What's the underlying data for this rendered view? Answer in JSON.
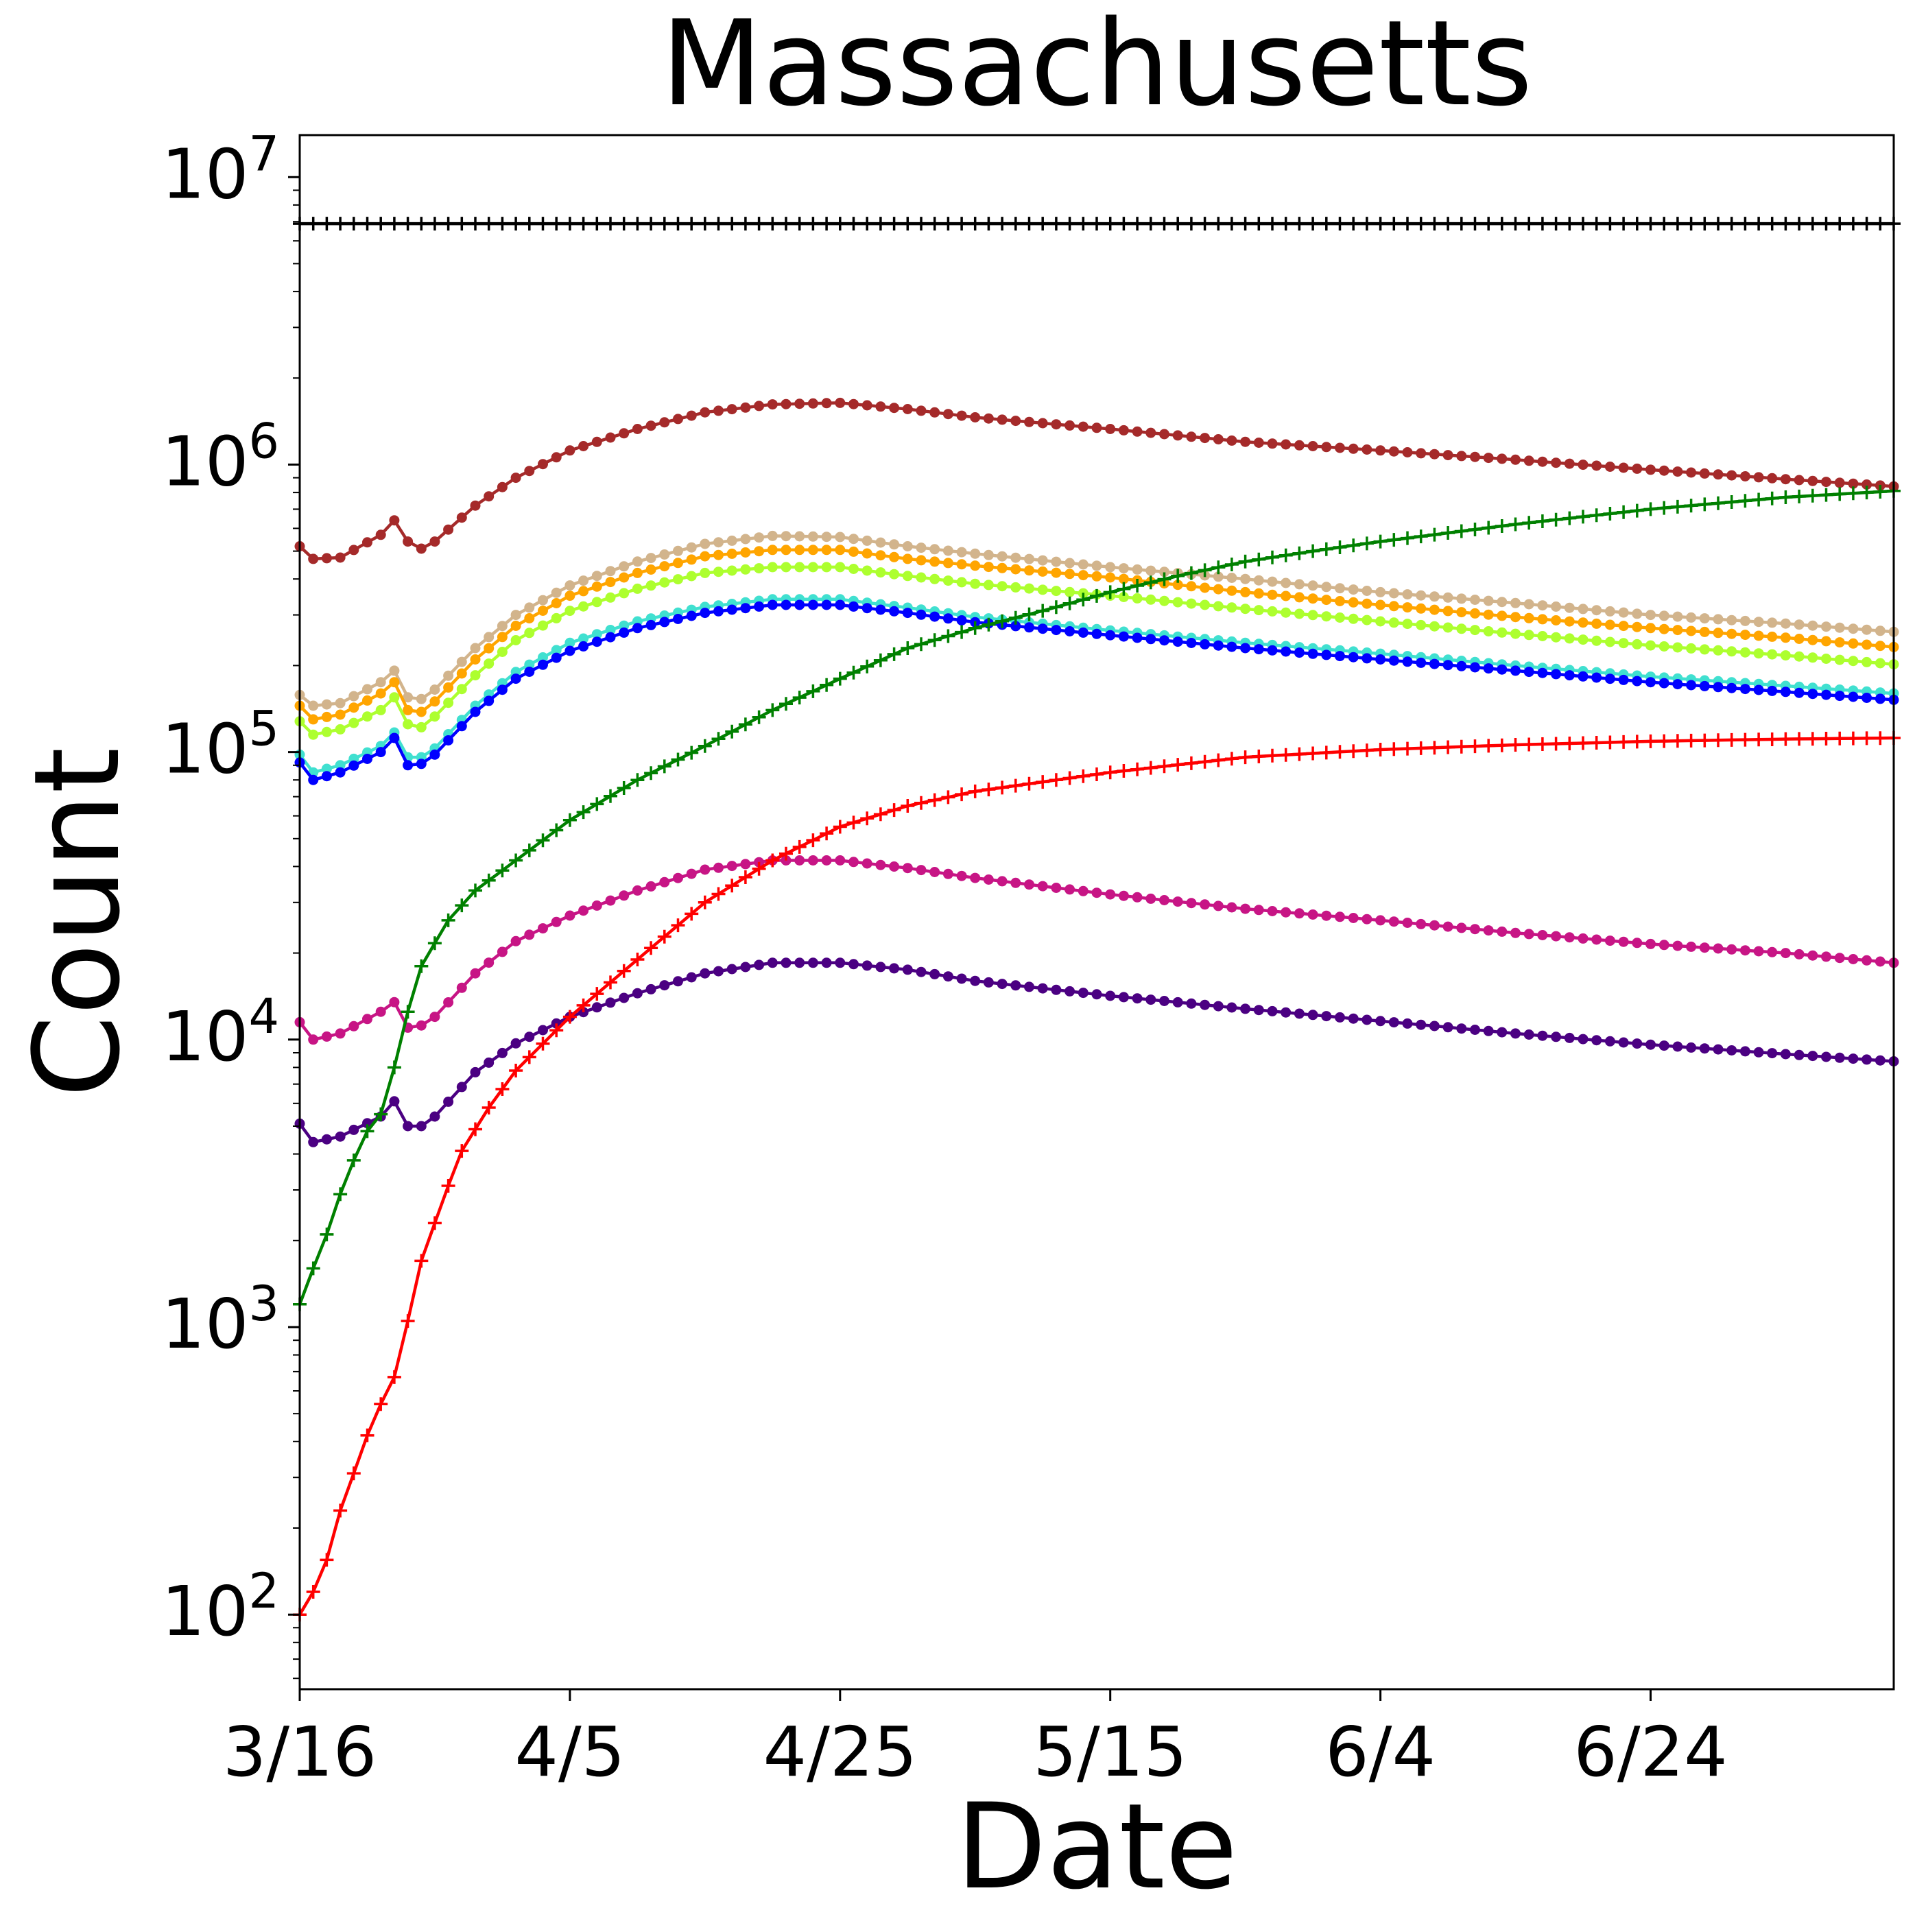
{
  "chart_data": {
    "type": "line",
    "title": "Massachusetts",
    "xlabel": "Date",
    "ylabel": "Count",
    "yscale": "log",
    "ylim": [
      55,
      14000000
    ],
    "grid": false,
    "x_start": "3/16",
    "x_end": "7/12",
    "x_tick_labels": [
      "3/16",
      "4/5",
      "4/25",
      "5/15",
      "6/4",
      "6/24"
    ],
    "y_ticks": [
      {
        "base": "10",
        "exp": "2"
      },
      {
        "base": "10",
        "exp": "3"
      },
      {
        "base": "10",
        "exp": "4"
      },
      {
        "base": "10",
        "exp": "5"
      },
      {
        "base": "10",
        "exp": "6"
      },
      {
        "base": "10",
        "exp": "7"
      }
    ],
    "series": [
      {
        "color": "#000000",
        "marker": "plus",
        "points": [
          [
            "3/16",
            6890000
          ],
          [
            "4/25",
            6890000
          ],
          [
            "6/4",
            6890000
          ],
          [
            "7/12",
            6890000
          ]
        ]
      },
      {
        "color": "#a52a2a",
        "marker": "dot",
        "points": [
          [
            "3/16",
            520000
          ],
          [
            "3/17",
            470000
          ],
          [
            "3/19",
            475000
          ],
          [
            "3/22",
            570000
          ],
          [
            "3/23",
            640000
          ],
          [
            "3/24",
            540000
          ],
          [
            "3/25",
            510000
          ],
          [
            "3/26",
            540000
          ],
          [
            "3/29",
            720000
          ],
          [
            "4/1",
            900000
          ],
          [
            "4/5",
            1120000
          ],
          [
            "4/10",
            1330000
          ],
          [
            "4/15",
            1520000
          ],
          [
            "4/20",
            1620000
          ],
          [
            "4/25",
            1640000
          ],
          [
            "4/30",
            1560000
          ],
          [
            "5/5",
            1460000
          ],
          [
            "5/15",
            1330000
          ],
          [
            "5/25",
            1200000
          ],
          [
            "6/4",
            1120000
          ],
          [
            "6/14",
            1040000
          ],
          [
            "6/24",
            960000
          ],
          [
            "7/4",
            890000
          ],
          [
            "7/12",
            840000
          ]
        ]
      },
      {
        "color": "#d2b48c",
        "marker": "dot",
        "points": [
          [
            "3/16",
            158000
          ],
          [
            "3/17",
            145000
          ],
          [
            "3/19",
            148000
          ],
          [
            "3/22",
            175000
          ],
          [
            "3/23",
            192000
          ],
          [
            "3/24",
            155000
          ],
          [
            "3/25",
            153000
          ],
          [
            "3/26",
            165000
          ],
          [
            "3/29",
            230000
          ],
          [
            "4/1",
            300000
          ],
          [
            "4/5",
            380000
          ],
          [
            "4/10",
            460000
          ],
          [
            "4/15",
            530000
          ],
          [
            "4/20",
            565000
          ],
          [
            "4/25",
            560000
          ],
          [
            "4/30",
            520000
          ],
          [
            "5/5",
            490000
          ],
          [
            "5/15",
            440000
          ],
          [
            "5/25",
            400000
          ],
          [
            "6/4",
            360000
          ],
          [
            "6/14",
            330000
          ],
          [
            "6/24",
            300000
          ],
          [
            "7/4",
            280000
          ],
          [
            "7/12",
            262000
          ]
        ]
      },
      {
        "color": "#ffa500",
        "marker": "dot",
        "points": [
          [
            "3/16",
            145000
          ],
          [
            "3/17",
            130000
          ],
          [
            "3/19",
            135000
          ],
          [
            "3/22",
            160000
          ],
          [
            "3/23",
            175000
          ],
          [
            "3/24",
            140000
          ],
          [
            "3/25",
            138000
          ],
          [
            "3/26",
            150000
          ],
          [
            "3/29",
            210000
          ],
          [
            "4/1",
            275000
          ],
          [
            "4/5",
            350000
          ],
          [
            "4/10",
            420000
          ],
          [
            "4/15",
            480000
          ],
          [
            "4/20",
            505000
          ],
          [
            "4/25",
            505000
          ],
          [
            "4/30",
            470000
          ],
          [
            "5/5",
            445000
          ],
          [
            "5/15",
            405000
          ],
          [
            "5/25",
            360000
          ],
          [
            "6/4",
            325000
          ],
          [
            "6/14",
            295000
          ],
          [
            "6/24",
            270000
          ],
          [
            "7/4",
            250000
          ],
          [
            "7/12",
            232000
          ]
        ]
      },
      {
        "color": "#adff2f",
        "marker": "dot",
        "points": [
          [
            "3/16",
            128000
          ],
          [
            "3/17",
            115000
          ],
          [
            "3/19",
            120000
          ],
          [
            "3/22",
            140000
          ],
          [
            "3/23",
            155000
          ],
          [
            "3/24",
            125000
          ],
          [
            "3/25",
            122000
          ],
          [
            "3/26",
            133000
          ],
          [
            "3/29",
            185000
          ],
          [
            "4/1",
            245000
          ],
          [
            "4/5",
            310000
          ],
          [
            "4/10",
            370000
          ],
          [
            "4/15",
            420000
          ],
          [
            "4/20",
            440000
          ],
          [
            "4/25",
            440000
          ],
          [
            "4/30",
            410000
          ],
          [
            "5/5",
            385000
          ],
          [
            "5/15",
            350000
          ],
          [
            "5/25",
            315000
          ],
          [
            "6/4",
            285000
          ],
          [
            "6/14",
            258000
          ],
          [
            "6/24",
            235000
          ],
          [
            "7/4",
            217000
          ],
          [
            "7/12",
            202000
          ]
        ]
      },
      {
        "color": "#40e0d0",
        "marker": "dot",
        "points": [
          [
            "3/16",
            98000
          ],
          [
            "3/17",
            85000
          ],
          [
            "3/19",
            90000
          ],
          [
            "3/22",
            105000
          ],
          [
            "3/23",
            117000
          ],
          [
            "3/24",
            96000
          ],
          [
            "3/25",
            96000
          ],
          [
            "3/26",
            103000
          ],
          [
            "3/29",
            145000
          ],
          [
            "4/1",
            190000
          ],
          [
            "4/5",
            240000
          ],
          [
            "4/10",
            285000
          ],
          [
            "4/15",
            320000
          ],
          [
            "4/20",
            340000
          ],
          [
            "4/25",
            340000
          ],
          [
            "4/30",
            318000
          ],
          [
            "5/5",
            295000
          ],
          [
            "5/15",
            265000
          ],
          [
            "5/25",
            240000
          ],
          [
            "6/4",
            220000
          ],
          [
            "6/14",
            200000
          ],
          [
            "6/24",
            183000
          ],
          [
            "7/4",
            170000
          ],
          [
            "7/12",
            160000
          ]
        ]
      },
      {
        "color": "#0000ff",
        "marker": "dot",
        "points": [
          [
            "3/16",
            92000
          ],
          [
            "3/17",
            80000
          ],
          [
            "3/19",
            85000
          ],
          [
            "3/22",
            100000
          ],
          [
            "3/23",
            112000
          ],
          [
            "3/24",
            90000
          ],
          [
            "3/25",
            91000
          ],
          [
            "3/26",
            98000
          ],
          [
            "3/29",
            138000
          ],
          [
            "4/1",
            180000
          ],
          [
            "4/5",
            225000
          ],
          [
            "4/10",
            270000
          ],
          [
            "4/15",
            305000
          ],
          [
            "4/20",
            325000
          ],
          [
            "4/25",
            325000
          ],
          [
            "4/30",
            305000
          ],
          [
            "5/5",
            283000
          ],
          [
            "5/15",
            255000
          ],
          [
            "5/25",
            230000
          ],
          [
            "6/4",
            210000
          ],
          [
            "6/14",
            192000
          ],
          [
            "6/24",
            175000
          ],
          [
            "7/4",
            162000
          ],
          [
            "7/12",
            152000
          ]
        ]
      },
      {
        "color": "#c71585",
        "marker": "dot",
        "points": [
          [
            "3/16",
            11500
          ],
          [
            "3/17",
            10000
          ],
          [
            "3/19",
            10500
          ],
          [
            "3/22",
            12500
          ],
          [
            "3/23",
            13500
          ],
          [
            "3/24",
            11000
          ],
          [
            "3/25",
            11200
          ],
          [
            "3/26",
            12000
          ],
          [
            "3/29",
            17000
          ],
          [
            "4/1",
            22000
          ],
          [
            "4/5",
            27000
          ],
          [
            "4/10",
            33000
          ],
          [
            "4/15",
            39000
          ],
          [
            "4/20",
            42000
          ],
          [
            "4/25",
            42000
          ],
          [
            "4/30",
            39500
          ],
          [
            "5/5",
            36500
          ],
          [
            "5/15",
            32000
          ],
          [
            "5/25",
            28500
          ],
          [
            "6/4",
            26000
          ],
          [
            "6/14",
            23500
          ],
          [
            "6/24",
            21500
          ],
          [
            "7/4",
            20000
          ],
          [
            "7/12",
            18500
          ]
        ]
      },
      {
        "color": "#4b0082",
        "marker": "dot",
        "points": [
          [
            "3/16",
            5100
          ],
          [
            "3/17",
            4400
          ],
          [
            "3/19",
            4600
          ],
          [
            "3/22",
            5400
          ],
          [
            "3/23",
            6100
          ],
          [
            "3/24",
            5000
          ],
          [
            "3/25",
            5000
          ],
          [
            "3/26",
            5400
          ],
          [
            "3/29",
            7700
          ],
          [
            "4/1",
            9700
          ],
          [
            "4/5",
            12000
          ],
          [
            "4/10",
            14500
          ],
          [
            "4/15",
            17000
          ],
          [
            "4/20",
            18500
          ],
          [
            "4/25",
            18500
          ],
          [
            "4/30",
            17500
          ],
          [
            "5/5",
            16000
          ],
          [
            "5/15",
            14200
          ],
          [
            "5/25",
            12800
          ],
          [
            "6/4",
            11600
          ],
          [
            "6/14",
            10500
          ],
          [
            "6/24",
            9600
          ],
          [
            "7/4",
            8900
          ],
          [
            "7/12",
            8400
          ]
        ]
      },
      {
        "color": "#008000",
        "marker": "plus",
        "points": [
          [
            "3/16",
            1200
          ],
          [
            "3/17",
            1600
          ],
          [
            "3/18",
            2100
          ],
          [
            "3/19",
            2900
          ],
          [
            "3/20",
            3800
          ],
          [
            "3/21",
            4800
          ],
          [
            "3/22",
            5500
          ],
          [
            "3/23",
            8000
          ],
          [
            "3/24",
            12500
          ],
          [
            "3/25",
            18000
          ],
          [
            "3/27",
            26000
          ],
          [
            "3/29",
            33000
          ],
          [
            "4/1",
            42000
          ],
          [
            "4/5",
            58000
          ],
          [
            "4/10",
            80000
          ],
          [
            "4/15",
            105000
          ],
          [
            "4/20",
            140000
          ],
          [
            "4/25",
            180000
          ],
          [
            "4/30",
            230000
          ],
          [
            "5/5",
            270000
          ],
          [
            "5/10",
            310000
          ],
          [
            "5/15",
            360000
          ],
          [
            "5/20",
            410000
          ],
          [
            "5/25",
            460000
          ],
          [
            "5/30",
            500000
          ],
          [
            "6/4",
            540000
          ],
          [
            "6/14",
            620000
          ],
          [
            "6/24",
            700000
          ],
          [
            "7/4",
            770000
          ],
          [
            "7/12",
            810000
          ]
        ]
      },
      {
        "color": "#ff0000",
        "marker": "plus",
        "points": [
          [
            "3/16",
            100
          ],
          [
            "3/17",
            120
          ],
          [
            "3/18",
            155
          ],
          [
            "3/19",
            230
          ],
          [
            "3/20",
            310
          ],
          [
            "3/21",
            420
          ],
          [
            "3/22",
            540
          ],
          [
            "3/23",
            670
          ],
          [
            "3/24",
            1050
          ],
          [
            "3/25",
            1700
          ],
          [
            "3/26",
            2300
          ],
          [
            "3/27",
            3100
          ],
          [
            "3/28",
            4100
          ],
          [
            "3/30",
            5800
          ],
          [
            "4/1",
            7800
          ],
          [
            "4/5",
            12000
          ],
          [
            "4/10",
            19000
          ],
          [
            "4/15",
            30000
          ],
          [
            "4/20",
            42000
          ],
          [
            "4/25",
            55000
          ],
          [
            "4/30",
            65000
          ],
          [
            "5/5",
            73000
          ],
          [
            "5/15",
            85000
          ],
          [
            "5/25",
            96000
          ],
          [
            "6/4",
            102000
          ],
          [
            "6/14",
            106000
          ],
          [
            "6/24",
            109000
          ],
          [
            "7/4",
            111000
          ],
          [
            "7/12",
            112000
          ]
        ]
      }
    ]
  }
}
